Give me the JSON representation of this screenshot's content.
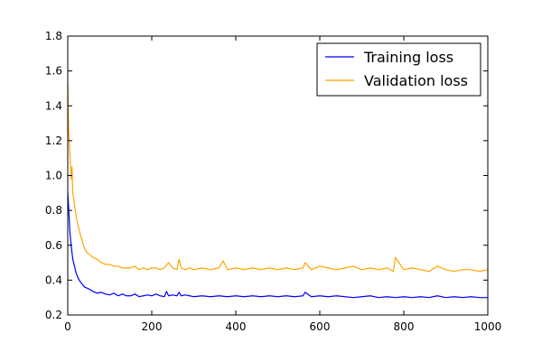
{
  "chart_data": {
    "type": "line",
    "title": "",
    "xlabel": "",
    "ylabel": "",
    "xlim": [
      0,
      1000
    ],
    "ylim": [
      0.2,
      1.8
    ],
    "xticks": [
      0,
      200,
      400,
      600,
      800,
      1000
    ],
    "yticks": [
      0.2,
      0.4,
      0.6,
      0.8,
      1.0,
      1.2,
      1.4,
      1.6,
      1.8
    ],
    "xtick_labels": [
      "0",
      "200",
      "400",
      "600",
      "800",
      "1000"
    ],
    "ytick_labels": [
      "0.2",
      "0.4",
      "0.6",
      "0.8",
      "1.0",
      "1.2",
      "1.4",
      "1.6",
      "1.8"
    ],
    "grid": false,
    "legend_position": "top-right",
    "series": [
      {
        "name": "Training loss",
        "color": "#0000ff",
        "x": [
          0,
          2,
          5,
          8,
          12,
          16,
          20,
          25,
          30,
          40,
          50,
          60,
          70,
          80,
          90,
          100,
          110,
          120,
          130,
          140,
          150,
          160,
          170,
          180,
          190,
          200,
          210,
          220,
          230,
          235,
          240,
          250,
          260,
          265,
          270,
          280,
          290,
          300,
          320,
          340,
          360,
          380,
          400,
          420,
          440,
          460,
          480,
          500,
          520,
          540,
          560,
          565,
          580,
          600,
          620,
          640,
          660,
          680,
          700,
          720,
          740,
          760,
          780,
          800,
          820,
          840,
          860,
          880,
          900,
          920,
          940,
          960,
          980,
          1000
        ],
        "y": [
          0.9,
          0.82,
          0.68,
          0.6,
          0.52,
          0.48,
          0.44,
          0.41,
          0.39,
          0.36,
          0.35,
          0.335,
          0.325,
          0.33,
          0.32,
          0.315,
          0.325,
          0.31,
          0.32,
          0.31,
          0.31,
          0.32,
          0.305,
          0.31,
          0.315,
          0.31,
          0.32,
          0.31,
          0.305,
          0.335,
          0.31,
          0.315,
          0.31,
          0.33,
          0.31,
          0.315,
          0.31,
          0.305,
          0.31,
          0.305,
          0.31,
          0.305,
          0.31,
          0.305,
          0.31,
          0.305,
          0.31,
          0.305,
          0.31,
          0.305,
          0.31,
          0.33,
          0.305,
          0.31,
          0.305,
          0.31,
          0.305,
          0.3,
          0.305,
          0.31,
          0.3,
          0.305,
          0.3,
          0.305,
          0.3,
          0.305,
          0.3,
          0.31,
          0.3,
          0.305,
          0.3,
          0.305,
          0.3,
          0.3
        ]
      },
      {
        "name": "Validation loss",
        "color": "#ffa500",
        "x": [
          0,
          2,
          4,
          6,
          8,
          10,
          12,
          15,
          18,
          22,
          26,
          30,
          35,
          40,
          45,
          50,
          55,
          60,
          70,
          80,
          90,
          100,
          110,
          120,
          130,
          140,
          150,
          160,
          170,
          180,
          190,
          200,
          210,
          220,
          230,
          240,
          250,
          260,
          265,
          270,
          280,
          290,
          300,
          320,
          340,
          360,
          370,
          380,
          400,
          420,
          440,
          460,
          480,
          500,
          520,
          540,
          560,
          565,
          580,
          600,
          620,
          640,
          660,
          680,
          700,
          720,
          740,
          760,
          775,
          780,
          800,
          820,
          840,
          860,
          880,
          900,
          920,
          940,
          960,
          980,
          1000
        ],
        "y": [
          1.52,
          1.27,
          1.18,
          1.08,
          0.98,
          1.05,
          0.9,
          0.85,
          0.8,
          0.74,
          0.7,
          0.66,
          0.62,
          0.58,
          0.56,
          0.55,
          0.54,
          0.53,
          0.52,
          0.5,
          0.49,
          0.49,
          0.48,
          0.48,
          0.47,
          0.47,
          0.47,
          0.48,
          0.46,
          0.47,
          0.46,
          0.47,
          0.47,
          0.46,
          0.47,
          0.5,
          0.47,
          0.46,
          0.52,
          0.47,
          0.46,
          0.47,
          0.46,
          0.47,
          0.46,
          0.47,
          0.51,
          0.46,
          0.47,
          0.46,
          0.47,
          0.46,
          0.47,
          0.46,
          0.47,
          0.46,
          0.47,
          0.5,
          0.46,
          0.48,
          0.47,
          0.46,
          0.47,
          0.48,
          0.46,
          0.47,
          0.46,
          0.47,
          0.45,
          0.53,
          0.46,
          0.47,
          0.46,
          0.45,
          0.48,
          0.46,
          0.45,
          0.46,
          0.46,
          0.45,
          0.46
        ]
      }
    ]
  }
}
